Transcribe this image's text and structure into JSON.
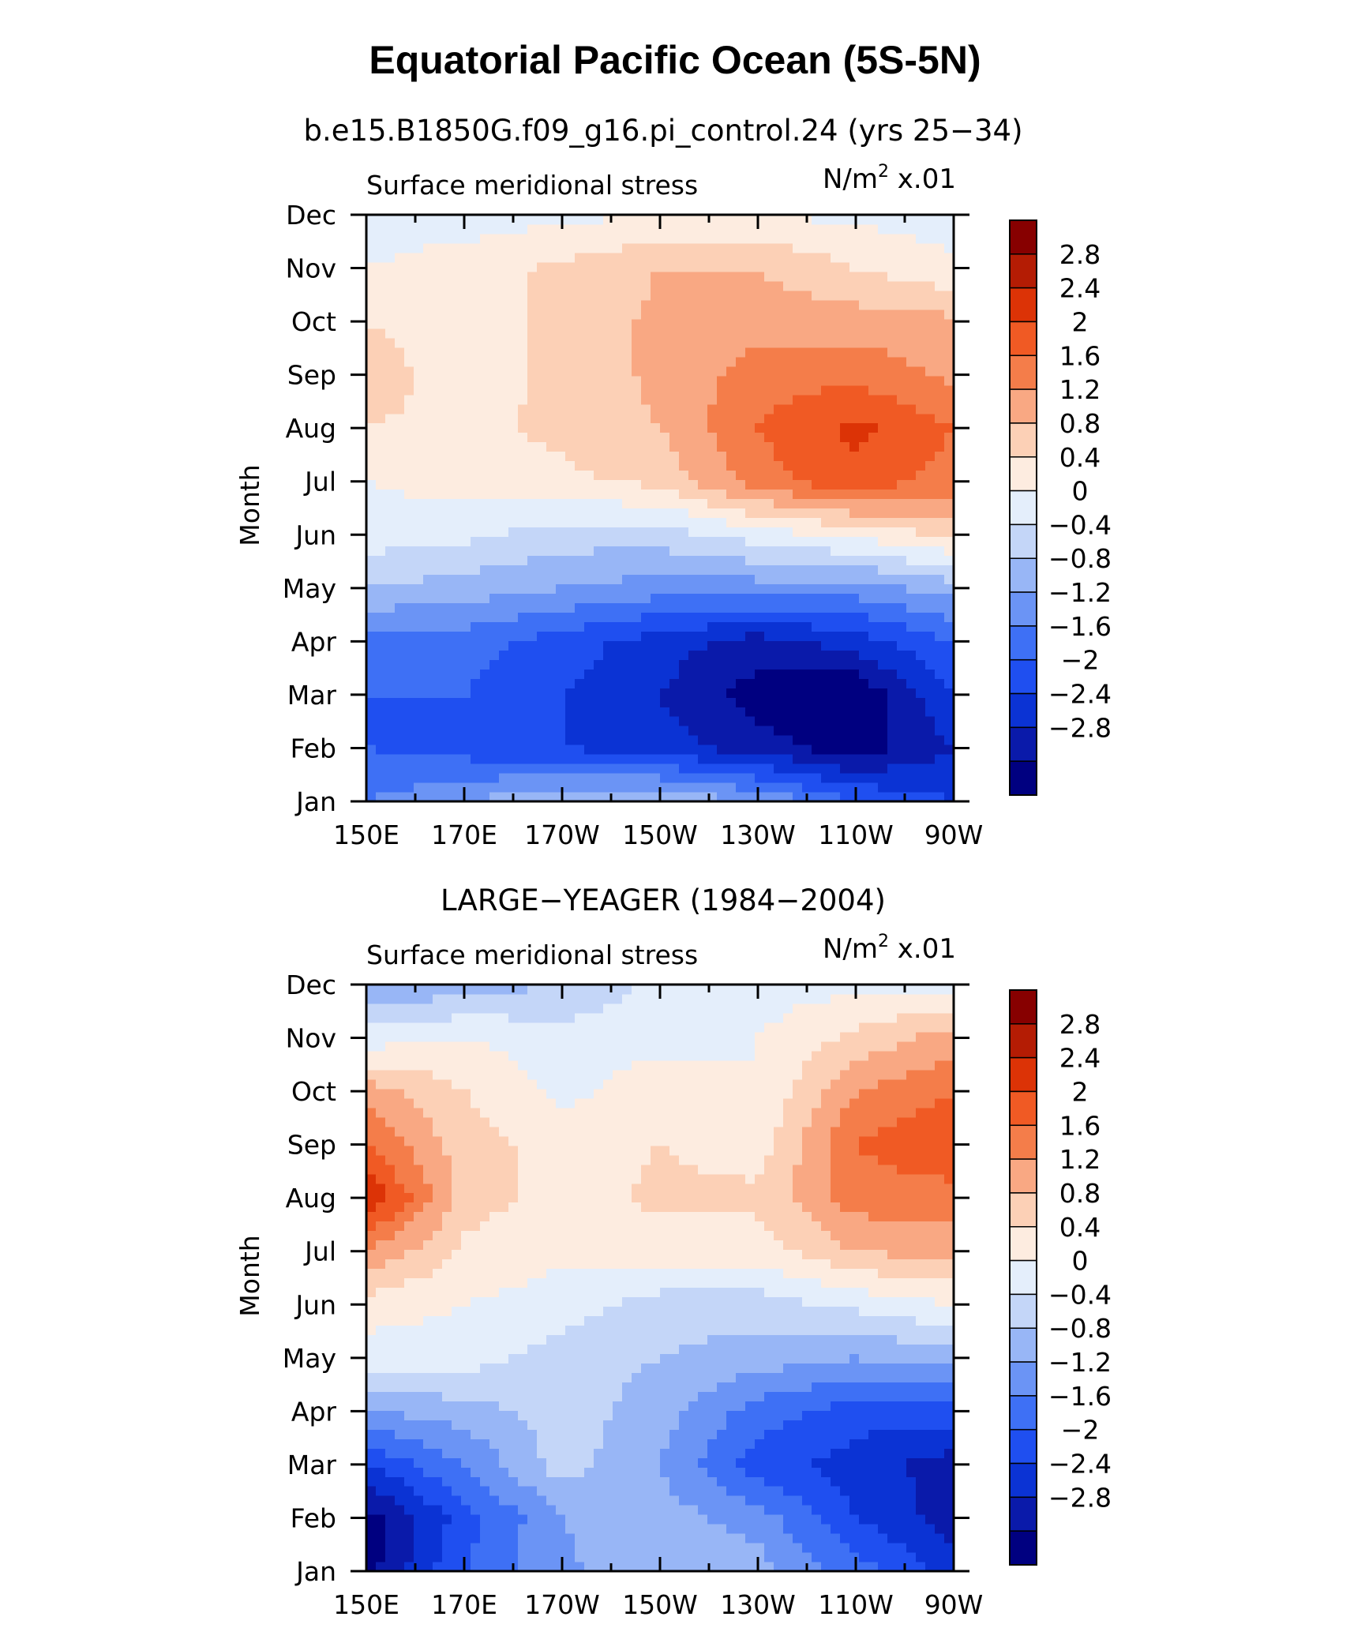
{
  "figure": {
    "title": "Equatorial Pacific Ocean (5S-5N)"
  },
  "chart_data": [
    {
      "type": "heatmap",
      "title": "b.e15.B1850G.f09_g16.pi_control.24 (yrs 25−34)",
      "variable": "Surface meridional stress",
      "units_label": "N/m",
      "units_sup": "2",
      "units_scale": "x.01",
      "ylabel": "Month",
      "xlabel": "",
      "x": [
        "150E",
        "170E",
        "170W",
        "150W",
        "130W",
        "110W",
        "90W"
      ],
      "y": [
        "Jan",
        "Feb",
        "Mar",
        "Apr",
        "May",
        "Jun",
        "Jul",
        "Aug",
        "Sep",
        "Oct",
        "Nov",
        "Dec"
      ],
      "values": [
        [
          -1.2,
          -0.8,
          -0.4,
          -0.4,
          -0.8,
          -1.6,
          -2.0
        ],
        [
          -1.6,
          -1.8,
          -2.0,
          -2.2,
          -2.6,
          -3.0,
          -2.4
        ],
        [
          -1.6,
          -1.6,
          -2.0,
          -2.4,
          -3.0,
          -3.2,
          -2.0
        ],
        [
          -1.4,
          -1.4,
          -1.8,
          -2.2,
          -2.6,
          -2.2,
          -1.6
        ],
        [
          -0.4,
          -0.6,
          -0.8,
          -1.0,
          -1.0,
          -1.0,
          -0.6
        ],
        [
          0.2,
          0.1,
          -0.2,
          -0.2,
          0.2,
          0.5,
          0.9
        ],
        [
          0.4,
          0.6,
          0.7,
          0.9,
          1.8,
          2.3,
          1.8
        ],
        [
          0.8,
          0.7,
          0.9,
          1.2,
          2.0,
          2.5,
          2.0
        ],
        [
          1.0,
          0.6,
          0.9,
          1.3,
          1.8,
          1.9,
          1.5
        ],
        [
          0.8,
          0.6,
          0.9,
          1.3,
          1.4,
          1.4,
          1.3
        ],
        [
          0.4,
          0.6,
          0.9,
          1.2,
          1.2,
          0.8,
          0.5
        ],
        [
          0.2,
          0.2,
          0.3,
          0.4,
          0.4,
          0.3,
          0.2
        ]
      ],
      "colorbar_labels": [
        "2.8",
        "2.4",
        "2",
        "1.6",
        "1.2",
        "0.8",
        "0.4",
        "0",
        "−0.4",
        "−0.8",
        "−1.2",
        "−1.6",
        "−2",
        "−2.4",
        "−2.8"
      ]
    },
    {
      "type": "heatmap",
      "title": "LARGE−YEAGER (1984−2004)",
      "variable": "Surface meridional stress",
      "units_label": "N/m",
      "units_sup": "2",
      "units_scale": "x.01",
      "ylabel": "Month",
      "xlabel": "",
      "x": [
        "150E",
        "170E",
        "170W",
        "150W",
        "130W",
        "110W",
        "90W"
      ],
      "y": [
        "Jan",
        "Feb",
        "Mar",
        "Apr",
        "May",
        "Jun",
        "Jul",
        "Aug",
        "Sep",
        "Oct",
        "Nov",
        "Dec"
      ],
      "values": [
        [
          -3.0,
          -1.6,
          -0.9,
          -0.4,
          -0.6,
          -1.4,
          -2.2
        ],
        [
          -3.0,
          -1.8,
          -0.8,
          -0.6,
          -1.0,
          -2.0,
          -2.6
        ],
        [
          -2.0,
          -1.2,
          -0.2,
          -0.8,
          -1.8,
          -2.2,
          -2.6
        ],
        [
          -0.8,
          -0.6,
          -0.2,
          -0.6,
          -1.4,
          -1.8,
          -1.8
        ],
        [
          0.2,
          0.2,
          -0.2,
          -0.4,
          -0.6,
          -0.8,
          -0.6
        ],
        [
          0.6,
          0.4,
          0.2,
          -0.2,
          -0.2,
          0.1,
          0.4
        ],
        [
          1.6,
          0.7,
          0.5,
          0.6,
          0.6,
          1.2,
          1.4
        ],
        [
          2.8,
          1.0,
          0.6,
          0.9,
          0.9,
          1.8,
          1.8
        ],
        [
          2.0,
          1.0,
          0.6,
          0.8,
          0.6,
          2.0,
          2.4
        ],
        [
          1.4,
          0.8,
          0.3,
          0.6,
          0.4,
          1.6,
          2.0
        ],
        [
          0.2,
          0.4,
          0.2,
          0.3,
          0.4,
          0.9,
          1.4
        ],
        [
          -0.8,
          -0.6,
          -0.4,
          0.1,
          0.2,
          0.3,
          0.3
        ]
      ],
      "colorbar_labels": [
        "2.8",
        "2.4",
        "2",
        "1.6",
        "1.2",
        "0.8",
        "0.4",
        "0",
        "−0.4",
        "−0.8",
        "−1.2",
        "−1.6",
        "−2",
        "−2.4",
        "−2.8"
      ]
    }
  ],
  "colorscale": {
    "levels": [
      -2.8,
      -2.4,
      -2.0,
      -1.6,
      -1.2,
      -0.8,
      -0.4,
      0.0,
      0.4,
      0.8,
      1.2,
      1.6,
      2.0,
      2.4,
      2.8
    ],
    "colors": [
      "#000080",
      "#0a1aaa",
      "#0b33d4",
      "#1f4ff0",
      "#3e70f5",
      "#6b94f5",
      "#98b6f6",
      "#c4d6f8",
      "#e4eefb",
      "#fdece0",
      "#fcd0b6",
      "#f9a883",
      "#f47d4a",
      "#f05a24",
      "#dc3306",
      "#b41c04",
      "#870000"
    ]
  }
}
